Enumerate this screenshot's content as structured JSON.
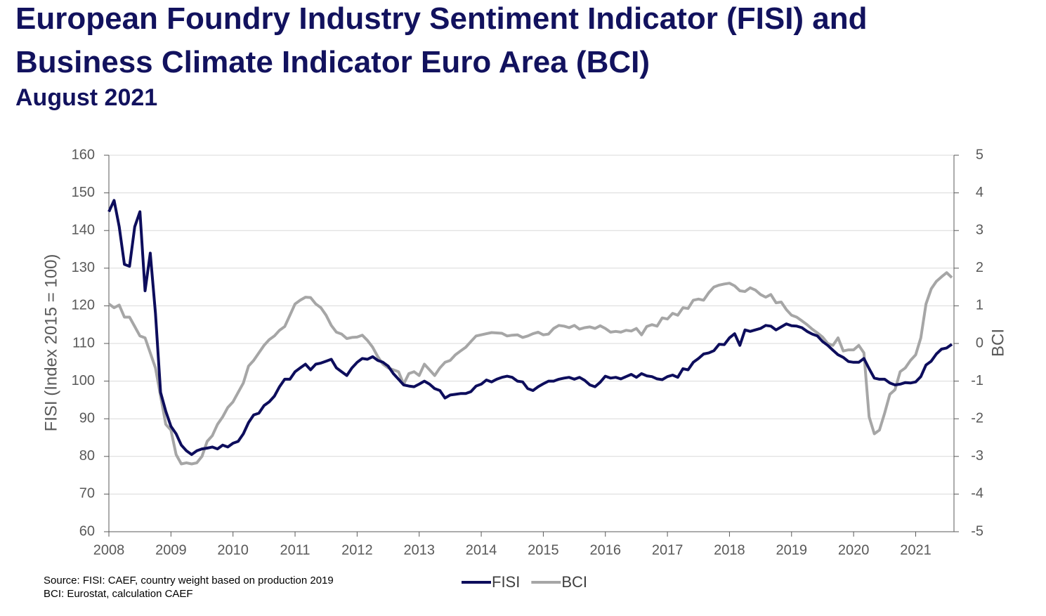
{
  "chart_data": {
    "type": "line",
    "title": [
      "European Foundry Industry Sentiment Indicator (FISI) and",
      "Business Climate Indicator Euro Area (BCI)"
    ],
    "subtitle": "August 2021",
    "ylabel": "FISI (Index 2015 = 100)",
    "y2label": "BCI",
    "notes": [
      "Source: FISI: CAEF, country weight based on production 2019",
      "BCI: Eurostat, calculation CAEF"
    ],
    "categories": [
      "2008",
      null,
      null,
      null,
      null,
      null,
      null,
      null,
      null,
      null,
      null,
      null,
      "2009",
      null,
      null,
      null,
      null,
      null,
      null,
      null,
      null,
      null,
      null,
      null,
      "2010",
      null,
      null,
      null,
      null,
      null,
      null,
      null,
      null,
      null,
      null,
      null,
      "2011",
      null,
      null,
      null,
      null,
      null,
      null,
      null,
      null,
      null,
      null,
      null,
      "2012",
      null,
      null,
      null,
      null,
      null,
      null,
      null,
      null,
      null,
      null,
      null,
      "2013",
      null,
      null,
      null,
      null,
      null,
      null,
      null,
      null,
      null,
      null,
      null,
      "2014",
      null,
      null,
      null,
      null,
      null,
      null,
      null,
      null,
      null,
      null,
      null,
      "2015",
      null,
      null,
      null,
      null,
      null,
      null,
      null,
      null,
      null,
      null,
      null,
      "2016",
      null,
      null,
      null,
      null,
      null,
      null,
      null,
      null,
      null,
      null,
      null,
      "2017",
      null,
      null,
      null,
      null,
      null,
      null,
      null,
      null,
      null,
      null,
      null,
      "2018",
      null,
      null,
      null,
      null,
      null,
      null,
      null,
      null,
      null,
      null,
      null,
      "2019",
      null,
      null,
      null,
      null,
      null,
      null,
      null,
      null,
      null,
      null,
      null,
      "2020",
      null,
      null,
      null,
      null,
      null,
      null,
      null,
      null,
      null,
      null,
      null,
      "2021",
      null,
      null,
      null,
      null,
      null,
      null,
      null
    ],
    "series": [
      {
        "name": "FISI",
        "color": "#0d0d5c",
        "axis": "y",
        "values": [
          145,
          148,
          141,
          131,
          130.5,
          141,
          145,
          124,
          134,
          118,
          97,
          92,
          88,
          86,
          83,
          81.5,
          80.5,
          81.5,
          82,
          82.2,
          82.5,
          82,
          83,
          82.5,
          83.5,
          84,
          86,
          89,
          91,
          91.5,
          93.5,
          94.5,
          96,
          98.5,
          100.5,
          100.5,
          102.5,
          103.5,
          104.5,
          103,
          104.5,
          104.8,
          105.3,
          105.8,
          103.5,
          102.5,
          101.5,
          103.5,
          105,
          106,
          105.8,
          106.5,
          105.5,
          105,
          104,
          102,
          100.5,
          99,
          98.7,
          98.5,
          99.2,
          100,
          99.2,
          98,
          97.5,
          95.5,
          96.3,
          96.5,
          96.7,
          96.7,
          97.2,
          98.7,
          99.2,
          100.3,
          99.8,
          100.5,
          101,
          101.3,
          101,
          100,
          99.8,
          98,
          97.5,
          98.5,
          99.3,
          100,
          100,
          100.5,
          100.8,
          101,
          100.5,
          101,
          100.2,
          99,
          98.5,
          99.7,
          101.3,
          100.8,
          101,
          100.6,
          101.2,
          101.8,
          101,
          102,
          101.4,
          101.2,
          100.6,
          100.4,
          101.2,
          101.6,
          101,
          103.3,
          103,
          105,
          106,
          107.2,
          107.5,
          108.1,
          109.8,
          109.7,
          111.5,
          112.6,
          109.5,
          113.6,
          113.2,
          113.6,
          114,
          114.8,
          114.6,
          113.6,
          114.4,
          115.2,
          114.7,
          114.6,
          114.2,
          113.2,
          112.5,
          112,
          110.5,
          109.5,
          108.2,
          107,
          106.3,
          105.2,
          105,
          105,
          106,
          103.3,
          100.8,
          100.5,
          100.5,
          99.5,
          99,
          99.2,
          99.6,
          99.5,
          99.8,
          101.2,
          104.3,
          105.3,
          107.2,
          108.5,
          108.8,
          109.8
        ]
      },
      {
        "name": "BCI",
        "color": "#a6a6a6",
        "axis": "y2",
        "values": [
          1.05,
          0.95,
          1.02,
          0.7,
          0.7,
          0.45,
          0.2,
          0.15,
          -0.25,
          -0.65,
          -1.4,
          -2.15,
          -2.3,
          -2.95,
          -3.2,
          -3.17,
          -3.2,
          -3.17,
          -3.0,
          -2.6,
          -2.45,
          -2.15,
          -1.95,
          -1.7,
          -1.55,
          -1.3,
          -1.05,
          -0.6,
          -0.45,
          -0.25,
          -0.05,
          0.1,
          0.2,
          0.35,
          0.45,
          0.75,
          1.05,
          1.15,
          1.23,
          1.22,
          1.05,
          0.95,
          0.75,
          0.48,
          0.3,
          0.25,
          0.13,
          0.16,
          0.17,
          0.22,
          0.08,
          -0.1,
          -0.35,
          -0.55,
          -0.65,
          -0.7,
          -0.75,
          -1.08,
          -0.8,
          -0.75,
          -0.85,
          -0.55,
          -0.7,
          -0.85,
          -0.65,
          -0.5,
          -0.45,
          -0.3,
          -0.2,
          -0.1,
          0.05,
          0.2,
          0.23,
          0.26,
          0.29,
          0.28,
          0.27,
          0.2,
          0.22,
          0.23,
          0.16,
          0.2,
          0.26,
          0.3,
          0.23,
          0.25,
          0.4,
          0.48,
          0.46,
          0.42,
          0.48,
          0.38,
          0.42,
          0.44,
          0.4,
          0.47,
          0.4,
          0.3,
          0.32,
          0.3,
          0.35,
          0.33,
          0.4,
          0.23,
          0.45,
          0.5,
          0.46,
          0.68,
          0.65,
          0.8,
          0.75,
          0.95,
          0.93,
          1.15,
          1.18,
          1.15,
          1.35,
          1.5,
          1.55,
          1.58,
          1.6,
          1.53,
          1.4,
          1.38,
          1.48,
          1.42,
          1.3,
          1.23,
          1.3,
          1.08,
          1.1,
          0.9,
          0.75,
          0.7,
          0.6,
          0.5,
          0.38,
          0.28,
          0.17,
          0,
          -0.05,
          0.15,
          -0.2,
          -0.17,
          -0.17,
          -0.05,
          -0.25,
          -1.95,
          -2.4,
          -2.3,
          -1.85,
          -1.35,
          -1.23,
          -0.75,
          -0.65,
          -0.45,
          -0.3,
          0.15,
          1.05,
          1.45,
          1.65,
          1.77,
          1.88,
          1.75
        ]
      }
    ],
    "ylim": [
      60,
      160
    ],
    "yticks": [
      60,
      70,
      80,
      90,
      100,
      110,
      120,
      130,
      140,
      150,
      160
    ],
    "y2lim": [
      -5,
      5
    ],
    "y2ticks": [
      -5,
      -4,
      -3,
      -2,
      -1,
      0,
      1,
      2,
      3,
      4,
      5
    ],
    "grid": true,
    "legend": "bottom"
  }
}
